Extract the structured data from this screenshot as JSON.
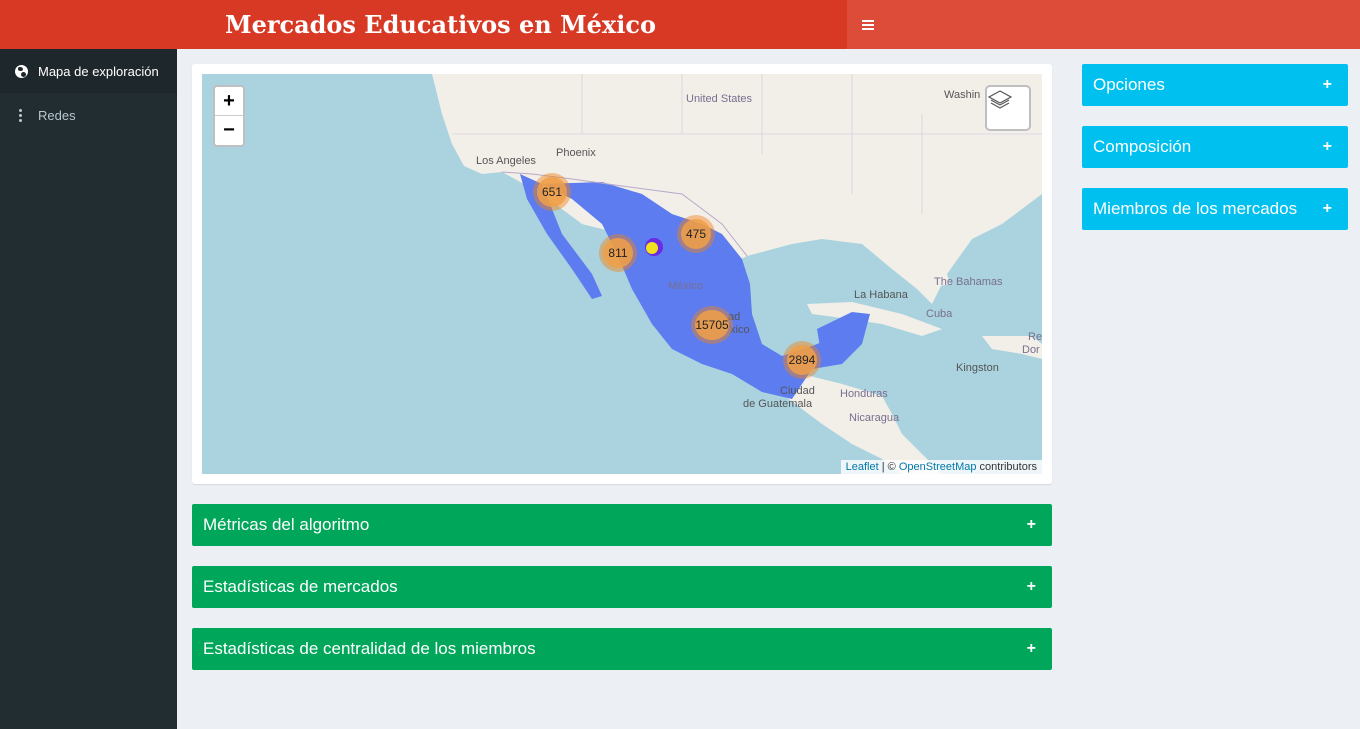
{
  "header": {
    "title": "Mercados Educativos en México"
  },
  "sidebar": {
    "items": [
      {
        "label": "Mapa de exploración",
        "icon": "globe-icon",
        "active": true
      },
      {
        "label": "Redes",
        "icon": "ellipsis-vertical-icon",
        "active": false
      }
    ]
  },
  "map": {
    "zoom_in": "+",
    "zoom_out": "−",
    "place_labels": {
      "united_states": "United States",
      "phoenix": "Phoenix",
      "los_angeles": "Los Angeles",
      "washington": "Washin",
      "mexico": "México",
      "ciudad_mexico_a": "ad",
      "ciudad_mexico_b": "xico",
      "la_habana": "La Habana",
      "bahamas": "The Bahamas",
      "cuba": "Cuba",
      "kingston": "Kingston",
      "re": "Re",
      "dor": "Dor",
      "ciudad": "Ciudad",
      "guatemala": "de Guatemala",
      "honduras": "Honduras",
      "nicaragua": "Nicaragua"
    },
    "clusters": [
      {
        "count": "651"
      },
      {
        "count": "475"
      },
      {
        "count": "811"
      },
      {
        "count": "15705"
      },
      {
        "count": "2894"
      }
    ],
    "attribution": {
      "leaflet": "Leaflet",
      "sep": " | © ",
      "osm": "OpenStreetMap",
      "suffix": " contributors"
    },
    "colors": {
      "water": "#aad3df",
      "land": "#f2efe9",
      "points": "#5c7cf0",
      "cluster": "#f18017"
    }
  },
  "boxes": {
    "metricas": "Métricas del algoritmo",
    "estadisticas_mercados": "Estadísticas de mercados",
    "centralidad": "Estadísticas de centralidad de los miembros",
    "opciones": "Opciones",
    "composicion": "Composición",
    "miembros": "Miembros de los mercados",
    "expand_symbol": "+"
  },
  "colors": {
    "header": "#d73925",
    "navbar": "#dd4b39",
    "sidebar": "#222d32",
    "green_box": "#00a65a",
    "blue_box": "#00c0ef"
  }
}
